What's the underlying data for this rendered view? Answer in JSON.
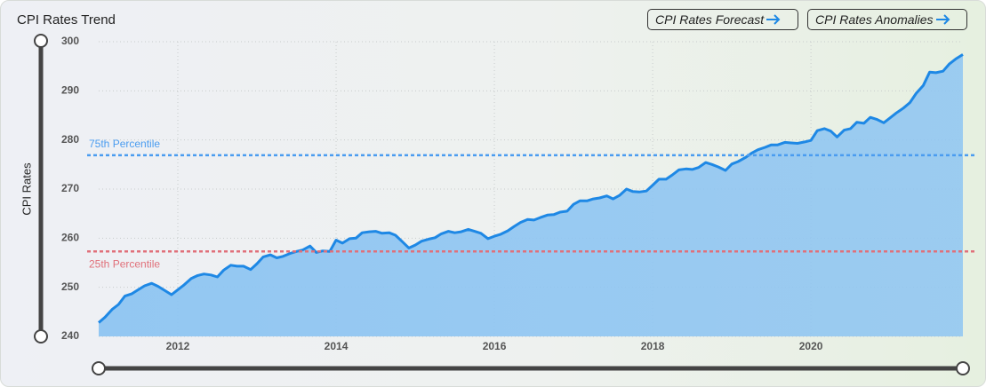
{
  "chart_data": {
    "type": "area",
    "title": "CPI Rates Trend",
    "buttons": [
      "CPI Rates Forecast",
      "CPI Rates Anomalies"
    ],
    "ylabel": "CPI Rates",
    "color": "#1e88e5",
    "fill": "#8ec5f2",
    "grid": true,
    "xlim": [
      2011,
      2021.92
    ],
    "ylim": [
      240,
      300
    ],
    "xticks": [
      2012,
      2014,
      2016,
      2018,
      2020
    ],
    "yticks": [
      240,
      250,
      260,
      270,
      280,
      290,
      300
    ],
    "x": [
      2011,
      2011.08,
      2011.17,
      2011.25,
      2011.33,
      2011.42,
      2011.5,
      2011.58,
      2011.67,
      2011.75,
      2011.83,
      2011.92,
      2012,
      2012.08,
      2012.17,
      2012.25,
      2012.33,
      2012.42,
      2012.5,
      2012.58,
      2012.67,
      2012.75,
      2012.83,
      2012.92,
      2013,
      2013.08,
      2013.17,
      2013.25,
      2013.33,
      2013.42,
      2013.5,
      2013.58,
      2013.67,
      2013.75,
      2013.83,
      2013.92,
      2014,
      2014.08,
      2014.17,
      2014.25,
      2014.33,
      2014.42,
      2014.5,
      2014.58,
      2014.67,
      2014.75,
      2014.83,
      2014.92,
      2015,
      2015.08,
      2015.17,
      2015.25,
      2015.33,
      2015.42,
      2015.5,
      2015.58,
      2015.67,
      2015.75,
      2015.83,
      2015.92,
      2016,
      2016.08,
      2016.17,
      2016.25,
      2016.33,
      2016.42,
      2016.5,
      2016.58,
      2016.67,
      2016.75,
      2016.83,
      2016.92,
      2017,
      2017.08,
      2017.17,
      2017.25,
      2017.33,
      2017.42,
      2017.5,
      2017.58,
      2017.67,
      2017.75,
      2017.83,
      2017.92,
      2018,
      2018.08,
      2018.17,
      2018.25,
      2018.33,
      2018.42,
      2018.5,
      2018.58,
      2018.67,
      2018.75,
      2018.83,
      2018.92,
      2019,
      2019.08,
      2019.17,
      2019.25,
      2019.33,
      2019.42,
      2019.5,
      2019.58,
      2019.67,
      2019.75,
      2019.83,
      2019.92,
      2020,
      2020.08,
      2020.17,
      2020.25,
      2020.33,
      2020.42,
      2020.5,
      2020.58,
      2020.67,
      2020.75,
      2020.83,
      2020.92,
      2021,
      2021.08,
      2021.17,
      2021.25,
      2021.33,
      2021.42,
      2021.5,
      2021.58,
      2021.67,
      2021.75,
      2021.83,
      2021.92
    ],
    "values": [
      242.8,
      243.9,
      245.5,
      246.5,
      248.2,
      248.7,
      249.5,
      250.3,
      250.8,
      250.2,
      249.4,
      248.5,
      249.5,
      250.5,
      251.8,
      252.4,
      252.7,
      252.5,
      252.1,
      253.5,
      254.5,
      254.3,
      254.3,
      253.6,
      254.8,
      256.2,
      256.6,
      256.0,
      256.3,
      256.9,
      257.3,
      257.6,
      258.4,
      257.1,
      257.4,
      257.3,
      259.6,
      259.0,
      259.9,
      260.0,
      261.1,
      261.3,
      261.4,
      261.0,
      261.1,
      260.6,
      259.4,
      258.0,
      258.6,
      259.4,
      259.8,
      260.1,
      260.9,
      261.4,
      261.1,
      261.3,
      261.8,
      261.4,
      261.0,
      259.9,
      260.4,
      260.8,
      261.5,
      262.4,
      263.2,
      263.8,
      263.7,
      264.2,
      264.7,
      264.8,
      265.3,
      265.5,
      266.9,
      267.6,
      267.6,
      268.0,
      268.2,
      268.6,
      268.0,
      268.7,
      270.0,
      269.5,
      269.4,
      269.6,
      270.8,
      272.0,
      272.0,
      272.9,
      273.9,
      274.1,
      274.0,
      274.4,
      275.4,
      275.0,
      274.5,
      273.8,
      275.1,
      275.6,
      276.4,
      277.3,
      278.0,
      278.5,
      279.0,
      279.0,
      279.5,
      279.4,
      279.3,
      279.6,
      279.9,
      281.9,
      282.3,
      281.8,
      280.6,
      282.0,
      282.3,
      283.6,
      283.4,
      284.6,
      284.2,
      283.5,
      284.5,
      285.5,
      286.5,
      287.6,
      289.5,
      291.1,
      293.8,
      293.7,
      294.0,
      295.5,
      296.5,
      297.4
    ],
    "reference_lines": [
      {
        "label": "75th Percentile",
        "value": 276.9,
        "color": "#4a9cf0"
      },
      {
        "label": "25th Percentile",
        "value": 257.3,
        "color": "#e0707a"
      }
    ]
  }
}
